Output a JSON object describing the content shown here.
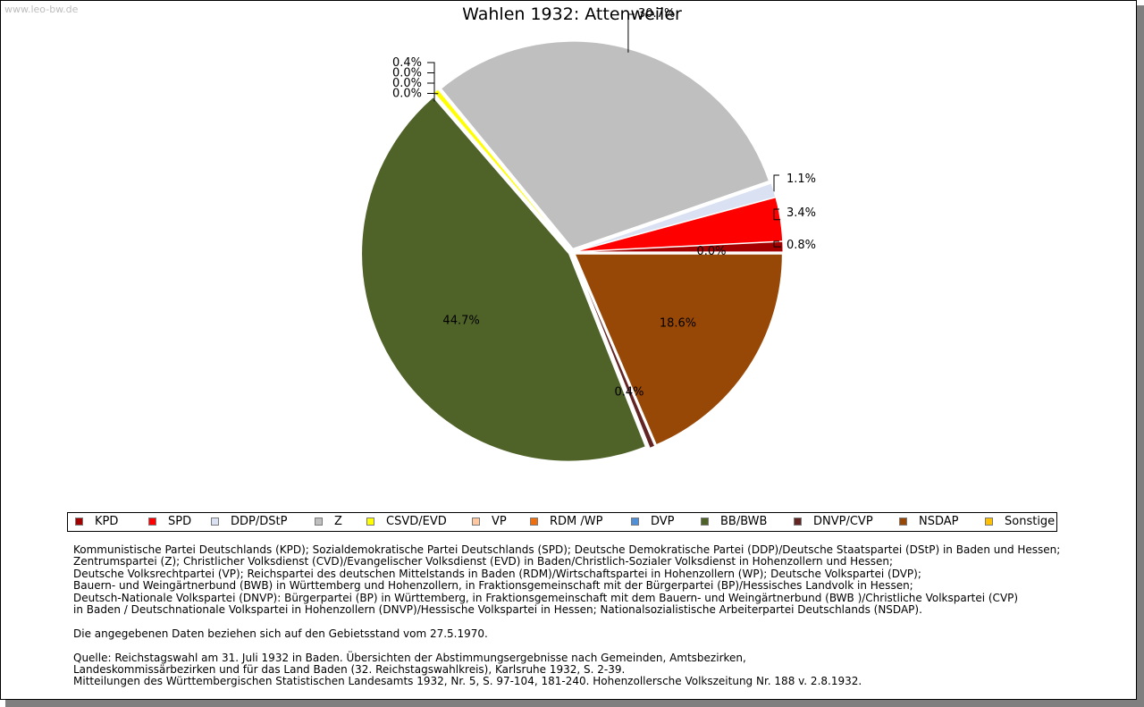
{
  "watermark": "www.leo-bw.de",
  "chart_data": {
    "type": "pie",
    "title": "Wahlen 1932: Attenweiler",
    "slices": [
      {
        "label": "KPD",
        "value": 0.8,
        "display": "0.8%",
        "color": "#a50000"
      },
      {
        "label": "SPD",
        "value": 3.4,
        "display": "3.4%",
        "color": "#ff0000"
      },
      {
        "label": "DDP/DStP",
        "value": 1.1,
        "display": "1.1%",
        "color": "#d9e1f2"
      },
      {
        "label": "Z",
        "value": 30.7,
        "display": "30.7%",
        "color": "#bfbfbf"
      },
      {
        "label": "CSVD/EVD",
        "value": 0.4,
        "display": "0.4%",
        "color": "#ffff00"
      },
      {
        "label": "VP",
        "value": 0.0,
        "display": "0.0%",
        "color": "#ffc8a0"
      },
      {
        "label": "RDM /WP",
        "value": 0.0,
        "display": "0.0%",
        "color": "#f07010"
      },
      {
        "label": "DVP",
        "value": 0.0,
        "display": "0.0%",
        "color": "#4f8fd8"
      },
      {
        "label": "BB/BWB",
        "value": 44.7,
        "display": "44.7%",
        "color": "#4f6228"
      },
      {
        "label": "DNVP/CVP",
        "value": 0.4,
        "display": "0.4%",
        "color": "#632523"
      },
      {
        "label": "NSDAP",
        "value": 18.6,
        "display": "18.6%",
        "color": "#984806"
      },
      {
        "label": "Sonstige",
        "value": 0.0,
        "display": "0.0%",
        "color": "#ffc000"
      }
    ],
    "legend_position": "bottom"
  },
  "notes": {
    "lines": [
      "Kommunistische Partei Deutschlands (KPD); Sozialdemokratische Partei Deutschlands (SPD); Deutsche Demokratische Partei (DDP)/Deutsche Staatspartei (DStP) in Baden und Hessen;",
      "Zentrumspartei (Z); Christlicher Volksdienst (CVD)/Evangelischer Volksdienst (EVD) in Baden/Christlich-Sozialer Volksdienst in Hohenzollern und Hessen;",
      "Deutsche Volksrechtpartei (VP); Reichspartei des deutschen Mittelstands in Baden (RDM)/Wirtschaftspartei in Hohenzollern (WP); Deutsche Volkspartei (DVP);",
      "Bauern- und Weingärtnerbund (BWB) in Württemberg und Hohenzollern, in Fraktionsgemeinschaft mit der Bürgerpartei (BP)/Hessisches Landvolk in Hessen;",
      "Deutsch-Nationale Volkspartei (DNVP): Bürgerpartei (BP) in Württemberg, in Fraktionsgemeinschaft mit dem Bauern- und Weingärtnerbund (BWB )/Christliche Volkspartei (CVP)",
      "in Baden / Deutschnationale Volkspartei in Hohenzollern (DNVP)/Hessische Volkspartei in Hessen; Nationalsozialistische Arbeiterpartei Deutschlands (NSDAP)."
    ],
    "stand": "Die angegebenen Daten beziehen sich auf den Gebietsstand vom 27.5.1970.",
    "quelle": [
      "Quelle: Reichstagswahl am 31. Juli 1932 in Baden. Übersichten der Abstimmungsergebnisse nach Gemeinden, Amtsbezirken,",
      "Landeskommissärbezirken und für das Land Baden (32. Reichstagswahlkreis), Karlsruhe 1932, S. 2-39.",
      "Mitteilungen des Württembergischen Statistischen Landesamts 1932, Nr. 5, S. 97-104, 181-240. Hohenzollersche Volkszeitung Nr. 188 v. 2.8.1932."
    ]
  }
}
